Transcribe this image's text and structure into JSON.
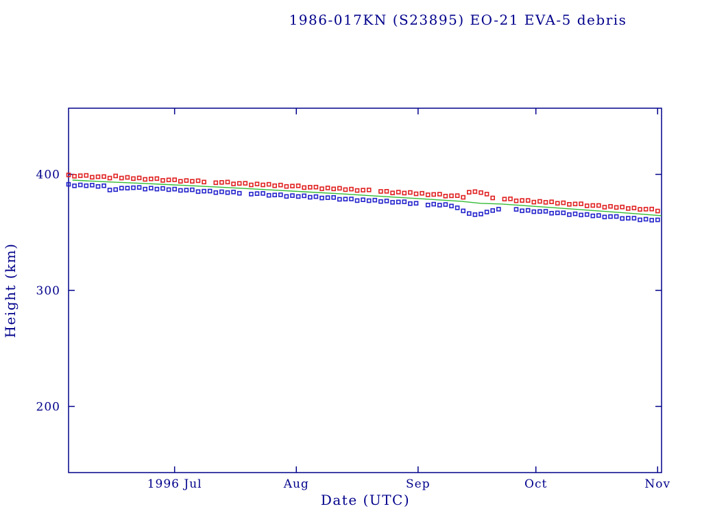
{
  "chart_data": {
    "type": "scatter",
    "title": "1986-017KN (S23895) EO-21 EVA-5 debris",
    "xlabel": "Date (UTC)",
    "ylabel": "Height (km)",
    "grid": false,
    "legend": "none",
    "colors": {
      "text_and_axis": "#00008b",
      "red_series": "#e02020",
      "blue_series": "#2222cc",
      "green_line": "#33bb33"
    },
    "x_axis": {
      "unit": "days from left edge of plot window (mid-1996)",
      "range_days": [
        0,
        151
      ],
      "ticks": [
        {
          "t": 27,
          "label": "1996 Jul"
        },
        {
          "t": 58,
          "label": "Aug"
        },
        {
          "t": 89,
          "label": "Sep"
        },
        {
          "t": 119,
          "label": "Oct"
        },
        {
          "t": 150,
          "label": "Nov"
        }
      ]
    },
    "y_axis": {
      "unit": "km",
      "range_km": [
        143,
        457
      ],
      "ticks": [
        {
          "value": 400,
          "label": "400"
        },
        {
          "value": 300,
          "label": "300"
        },
        {
          "value": 200,
          "label": "200"
        }
      ]
    },
    "series": [
      {
        "name": "red-squares-upper",
        "type": "scatter",
        "marker": "square",
        "color": "#e02020",
        "points": [
          [
            0,
            399.5
          ],
          [
            1.5,
            398.4
          ],
          [
            3,
            398.8
          ],
          [
            4.5,
            399.1
          ],
          [
            6,
            397.5
          ],
          [
            7.5,
            397.9
          ],
          [
            9,
            398.1
          ],
          [
            10.5,
            396.8
          ],
          [
            12,
            398.6
          ],
          [
            13.5,
            396.8
          ],
          [
            15,
            397.4
          ],
          [
            16.5,
            396.3
          ],
          [
            18,
            396.9
          ],
          [
            19.5,
            395.7
          ],
          [
            21,
            396.1
          ],
          [
            22.5,
            396.3
          ],
          [
            24,
            394.8
          ],
          [
            25.5,
            395.2
          ],
          [
            27,
            395.3
          ],
          [
            28.5,
            394.0
          ],
          [
            30,
            394.7
          ],
          [
            31.5,
            394.0
          ],
          [
            33,
            394.5
          ],
          [
            34.5,
            393.4
          ],
          [
            37.5,
            392.8
          ],
          [
            39,
            393.1
          ],
          [
            40.5,
            393.4
          ],
          [
            42,
            391.8
          ],
          [
            43.5,
            392.2
          ],
          [
            45,
            392.3
          ],
          [
            46.5,
            390.9
          ],
          [
            48,
            391.7
          ],
          [
            49.5,
            390.9
          ],
          [
            51,
            391.4
          ],
          [
            52.5,
            390.2
          ],
          [
            54,
            390.8
          ],
          [
            55.5,
            389.6
          ],
          [
            57,
            389.9
          ],
          [
            58.5,
            390.1
          ],
          [
            60,
            388.6
          ],
          [
            61.5,
            388.9
          ],
          [
            63,
            389.0
          ],
          [
            64.5,
            387.6
          ],
          [
            66,
            388.3
          ],
          [
            67.5,
            387.5
          ],
          [
            69,
            388.0
          ],
          [
            70.5,
            386.8
          ],
          [
            72,
            387.3
          ],
          [
            73.5,
            386.1
          ],
          [
            75,
            386.4
          ],
          [
            76.5,
            386.6
          ],
          [
            79.5,
            385.3
          ],
          [
            81,
            385.4
          ],
          [
            82.5,
            384.0
          ],
          [
            84,
            384.7
          ],
          [
            85.5,
            383.9
          ],
          [
            87,
            384.4
          ],
          [
            88.5,
            383.2
          ],
          [
            90,
            383.7
          ],
          [
            91.5,
            382.4
          ],
          [
            93,
            382.7
          ],
          [
            94.5,
            382.9
          ],
          [
            96,
            381.3
          ],
          [
            97.5,
            381.5
          ],
          [
            99,
            381.6
          ],
          [
            100.5,
            380.2
          ],
          [
            102,
            384.6
          ],
          [
            103.5,
            385.1
          ],
          [
            105,
            384.3
          ],
          [
            106.5,
            383.0
          ],
          [
            108,
            379.7
          ],
          [
            111,
            378.7
          ],
          [
            112.5,
            378.9
          ],
          [
            114,
            377.2
          ],
          [
            115.5,
            377.5
          ],
          [
            117,
            377.5
          ],
          [
            118.5,
            376.1
          ],
          [
            120,
            376.7
          ],
          [
            121.5,
            375.9
          ],
          [
            123,
            376.3
          ],
          [
            124.5,
            375.1
          ],
          [
            126,
            375.5
          ],
          [
            127.5,
            374.2
          ],
          [
            129,
            374.5
          ],
          [
            130.5,
            374.6
          ],
          [
            132,
            372.9
          ],
          [
            133.5,
            373.2
          ],
          [
            135,
            373.2
          ],
          [
            136.5,
            371.7
          ],
          [
            138,
            372.4
          ],
          [
            139.5,
            371.5
          ],
          [
            141,
            371.9
          ],
          [
            142.5,
            370.6
          ],
          [
            144,
            371.0
          ],
          [
            145.5,
            369.8
          ],
          [
            147,
            370.0
          ],
          [
            148.5,
            370.1
          ],
          [
            150,
            368.4
          ]
        ]
      },
      {
        "name": "blue-squares-lower",
        "type": "scatter",
        "marker": "square",
        "color": "#2222cc",
        "points": [
          [
            0,
            391.4
          ],
          [
            1.5,
            390.1
          ],
          [
            3,
            390.9
          ],
          [
            4.5,
            390.2
          ],
          [
            6,
            390.7
          ],
          [
            7.5,
            389.6
          ],
          [
            9,
            390.2
          ],
          [
            10.5,
            386.5
          ],
          [
            12,
            386.9
          ],
          [
            13.5,
            388.1
          ],
          [
            15,
            388.1
          ],
          [
            16.5,
            388.5
          ],
          [
            18,
            388.7
          ],
          [
            19.5,
            387.3
          ],
          [
            21,
            388.1
          ],
          [
            22.5,
            387.3
          ],
          [
            24,
            387.9
          ],
          [
            25.5,
            386.8
          ],
          [
            27,
            387.3
          ],
          [
            28.5,
            386.2
          ],
          [
            30,
            386.4
          ],
          [
            31.5,
            386.7
          ],
          [
            33,
            385.1
          ],
          [
            34.5,
            385.5
          ],
          [
            36,
            385.6
          ],
          [
            37.5,
            384.3
          ],
          [
            39,
            385.0
          ],
          [
            40.5,
            384.3
          ],
          [
            42,
            384.8
          ],
          [
            43.5,
            383.7
          ],
          [
            46.5,
            383.0
          ],
          [
            48,
            383.4
          ],
          [
            49.5,
            383.6
          ],
          [
            51,
            381.9
          ],
          [
            52.5,
            382.2
          ],
          [
            54,
            382.4
          ],
          [
            55.5,
            381.0
          ],
          [
            57,
            381.7
          ],
          [
            58.5,
            380.9
          ],
          [
            60,
            381.5
          ],
          [
            61.5,
            380.3
          ],
          [
            63,
            380.8
          ],
          [
            64.5,
            379.6
          ],
          [
            66,
            379.9
          ],
          [
            67.5,
            380.1
          ],
          [
            69,
            378.5
          ],
          [
            70.5,
            378.7
          ],
          [
            72,
            378.8
          ],
          [
            73.5,
            377.4
          ],
          [
            75,
            378.1
          ],
          [
            76.5,
            377.3
          ],
          [
            78,
            377.8
          ],
          [
            79.5,
            376.6
          ],
          [
            81,
            377.1
          ],
          [
            82.5,
            375.9
          ],
          [
            84,
            376.2
          ],
          [
            85.5,
            376.4
          ],
          [
            87,
            374.8
          ],
          [
            88.5,
            375.1
          ],
          [
            91.5,
            373.6
          ],
          [
            93,
            374.3
          ],
          [
            94.5,
            373.5
          ],
          [
            96,
            374.0
          ],
          [
            97.5,
            372.7
          ],
          [
            99,
            371.2
          ],
          [
            100.5,
            368.5
          ],
          [
            102,
            366.2
          ],
          [
            103.5,
            365.3
          ],
          [
            105,
            365.8
          ],
          [
            106.5,
            367.5
          ],
          [
            108,
            368.8
          ],
          [
            109.5,
            370.0
          ],
          [
            114,
            369.8
          ],
          [
            115.5,
            368.6
          ],
          [
            117,
            369.0
          ],
          [
            118.5,
            367.8
          ],
          [
            120,
            368.0
          ],
          [
            121.5,
            368.2
          ],
          [
            123,
            366.5
          ],
          [
            124.5,
            366.8
          ],
          [
            126,
            366.8
          ],
          [
            127.5,
            365.3
          ],
          [
            129,
            366.0
          ],
          [
            130.5,
            365.0
          ],
          [
            132,
            365.4
          ],
          [
            133.5,
            364.2
          ],
          [
            135,
            364.6
          ],
          [
            136.5,
            363.3
          ],
          [
            138,
            363.6
          ],
          [
            139.5,
            363.7
          ],
          [
            141,
            362.0
          ],
          [
            142.5,
            362.2
          ],
          [
            144,
            362.2
          ],
          [
            145.5,
            360.8
          ],
          [
            147,
            361.4
          ],
          [
            148.5,
            360.5
          ],
          [
            150,
            360.8
          ]
        ]
      },
      {
        "name": "green-line",
        "type": "line",
        "marker": "none",
        "color": "#33bb33",
        "points": [
          [
            1,
            395.0
          ],
          [
            10,
            393.5
          ],
          [
            20,
            392.0
          ],
          [
            30,
            390.4
          ],
          [
            40,
            388.7
          ],
          [
            50,
            386.9
          ],
          [
            60,
            385.0
          ],
          [
            70,
            383.1
          ],
          [
            80,
            381.0
          ],
          [
            90,
            378.9
          ],
          [
            100,
            376.8
          ],
          [
            105,
            375.0
          ],
          [
            110,
            374.5
          ],
          [
            120,
            372.1
          ],
          [
            130,
            369.7
          ],
          [
            140,
            367.2
          ],
          [
            151,
            364.4
          ]
        ]
      }
    ]
  }
}
